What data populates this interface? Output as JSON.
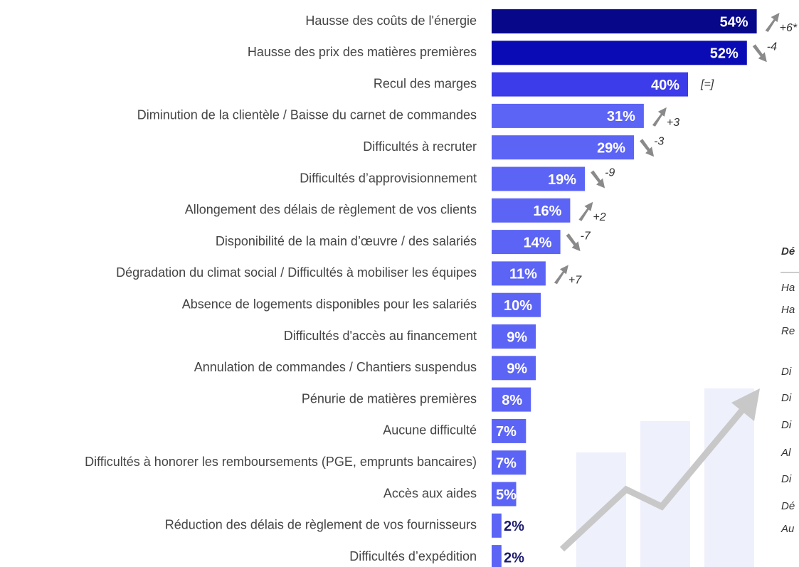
{
  "chart_data": {
    "type": "bar",
    "orientation": "horizontal",
    "categories": [
      "Hausse des coûts de l'énergie",
      "Hausse des prix des matières premières",
      "Recul des marges",
      "Diminution de la clientèle / Baisse du carnet de commandes",
      "Difficultés à recruter",
      "Difficultés d’approvisionnement",
      "Allongement des délais de règlement de vos clients",
      "Disponibilité de la main d’œuvre / des salariés",
      "Dégradation du climat social / Difficultés à mobiliser les équipes",
      "Absence de logements disponibles pour les salariés",
      "Difficultés d'accès au financement",
      "Annulation de commandes / Chantiers suspendus",
      "Pénurie de matières premières",
      "Aucune difficulté",
      "Difficultés à honorer les remboursements (PGE, emprunts bancaires)",
      "Accès aux aides",
      "Réduction des délais de règlement de vos fournisseurs",
      "Difficultés d’expédition"
    ],
    "values": [
      54,
      52,
      40,
      31,
      29,
      19,
      16,
      14,
      11,
      10,
      9,
      9,
      8,
      7,
      7,
      5,
      2,
      2
    ],
    "value_labels": [
      "54%",
      "52%",
      "40%",
      "31%",
      "29%",
      "19%",
      "16%",
      "14%",
      "11%",
      "10%",
      "9%",
      "9%",
      "8%",
      "7%",
      "7%",
      "5%",
      "2%",
      "2%"
    ],
    "colors": [
      "#07078a",
      "#0b0bb5",
      "#3c3cea",
      "#5c64f6",
      "#5c64f6",
      "#5c64f6",
      "#5c64f6",
      "#5c64f6",
      "#5c64f6",
      "#5c64f6",
      "#5c64f6",
      "#5c64f6",
      "#5c64f6",
      "#5c64f6",
      "#5c64f6",
      "#5c64f6",
      "#5c64f6",
      "#5c64f6"
    ],
    "changes": [
      "+6*",
      "-4",
      "[=]",
      "+3",
      "-3",
      "-9",
      "+2",
      "-7",
      "+7",
      null,
      null,
      null,
      null,
      null,
      null,
      null,
      null,
      null
    ]
  },
  "side_panel": {
    "title": "Dé",
    "items": [
      "Ha",
      "Ha",
      "Re",
      "Di",
      "Di",
      "Di",
      "Al",
      "Di",
      "Dé",
      "Au"
    ]
  }
}
